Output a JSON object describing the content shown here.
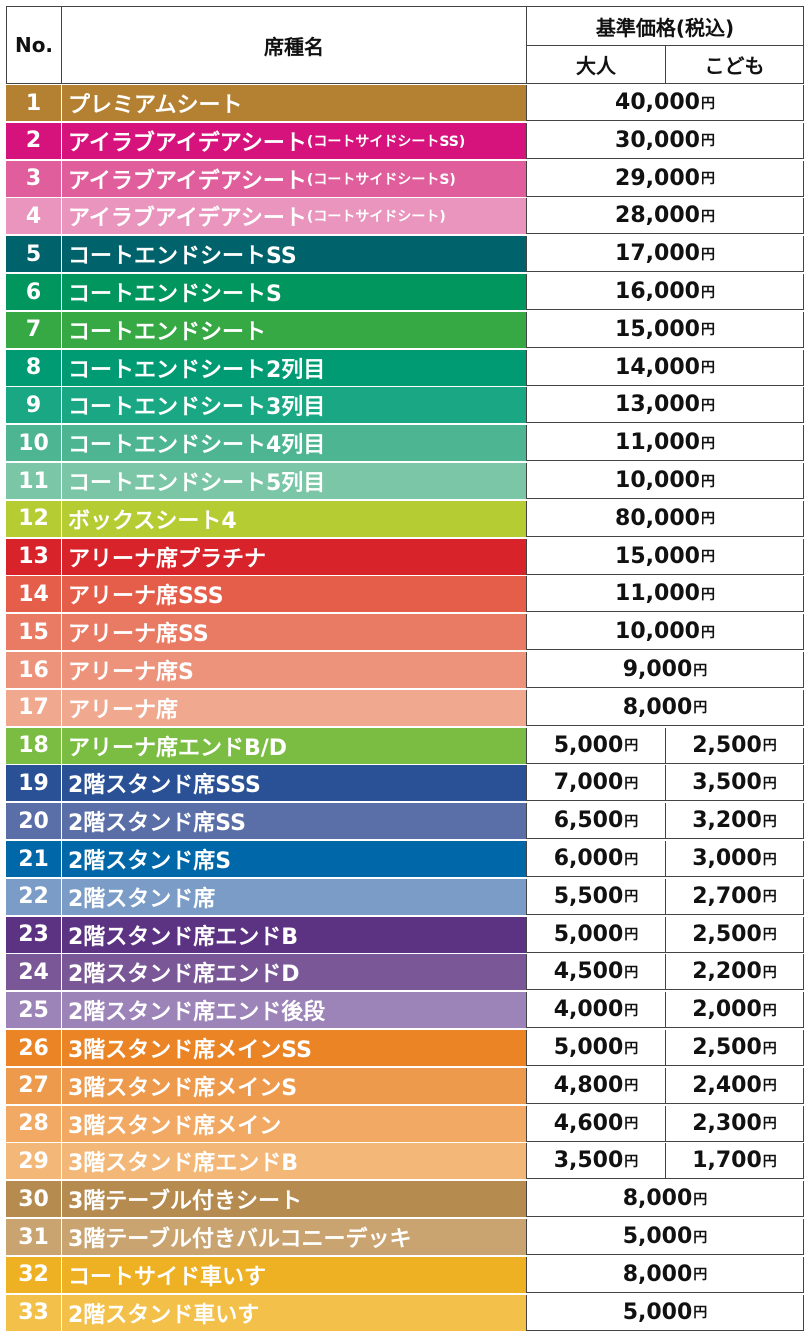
{
  "header": {
    "no": "No.",
    "seat_type": "席種名",
    "base_price": "基準価格(税込)",
    "adult": "大人",
    "child": "こども"
  },
  "yen": "円",
  "rows": [
    {
      "no": "1",
      "name": "プレミアムシート",
      "sub": "",
      "adult": "40,000",
      "child": "",
      "color": "#b48032"
    },
    {
      "no": "2",
      "name": "アイラブアイデアシート",
      "sub": "(コートサイドシートSS)",
      "adult": "30,000",
      "child": "",
      "color": "#d6137d"
    },
    {
      "no": "3",
      "name": "アイラブアイデアシート",
      "sub": "(コートサイドシートS)",
      "adult": "29,000",
      "child": "",
      "color": "#e05e9c"
    },
    {
      "no": "4",
      "name": "アイラブアイデアシート",
      "sub": "(コートサイドシート)",
      "adult": "28,000",
      "child": "",
      "color": "#e995bd"
    },
    {
      "no": "5",
      "name": "コートエンドシートSS",
      "sub": "",
      "adult": "17,000",
      "child": "",
      "color": "#00626a"
    },
    {
      "no": "6",
      "name": "コートエンドシートS",
      "sub": "",
      "adult": "16,000",
      "child": "",
      "color": "#00965e"
    },
    {
      "no": "7",
      "name": "コートエンドシート",
      "sub": "",
      "adult": "15,000",
      "child": "",
      "color": "#36a844"
    },
    {
      "no": "8",
      "name": "コートエンドシート2列目",
      "sub": "",
      "adult": "14,000",
      "child": "",
      "color": "#009b73"
    },
    {
      "no": "9",
      "name": "コートエンドシート3列目",
      "sub": "",
      "adult": "13,000",
      "child": "",
      "color": "#1aa884"
    },
    {
      "no": "10",
      "name": "コートエンドシート4列目",
      "sub": "",
      "adult": "11,000",
      "child": "",
      "color": "#4db592"
    },
    {
      "no": "11",
      "name": "コートエンドシート5列目",
      "sub": "",
      "adult": "10,000",
      "child": "",
      "color": "#7bc6a6"
    },
    {
      "no": "12",
      "name": "ボックスシート4",
      "sub": "",
      "adult": "80,000",
      "child": "",
      "color": "#b5cc32"
    },
    {
      "no": "13",
      "name": "アリーナ席プラチナ",
      "sub": "",
      "adult": "15,000",
      "child": "",
      "color": "#d8232a"
    },
    {
      "no": "14",
      "name": "アリーナ席SSS",
      "sub": "",
      "adult": "11,000",
      "child": "",
      "color": "#e55e4a"
    },
    {
      "no": "15",
      "name": "アリーナ席SS",
      "sub": "",
      "adult": "10,000",
      "child": "",
      "color": "#e97a63"
    },
    {
      "no": "16",
      "name": "アリーナ席S",
      "sub": "",
      "adult": "9,000",
      "child": "",
      "color": "#ed937b"
    },
    {
      "no": "17",
      "name": "アリーナ席",
      "sub": "",
      "adult": "8,000",
      "child": "",
      "color": "#f0a98f"
    },
    {
      "no": "18",
      "name": "アリーナ席エンドB/D",
      "sub": "",
      "adult": "5,000",
      "child": "2,500",
      "color": "#7bbd42"
    },
    {
      "no": "19",
      "name": "2階スタンド席SSS",
      "sub": "",
      "adult": "7,000",
      "child": "3,500",
      "color": "#2a5096"
    },
    {
      "no": "20",
      "name": "2階スタンド席SS",
      "sub": "",
      "adult": "6,500",
      "child": "3,200",
      "color": "#5a6fa8"
    },
    {
      "no": "21",
      "name": "2階スタンド席S",
      "sub": "",
      "adult": "6,000",
      "child": "3,000",
      "color": "#0068a8"
    },
    {
      "no": "22",
      "name": "2階スタンド席",
      "sub": "",
      "adult": "5,500",
      "child": "2,700",
      "color": "#7a9cc6"
    },
    {
      "no": "23",
      "name": "2階スタンド席エンドB",
      "sub": "",
      "adult": "5,000",
      "child": "2,500",
      "color": "#5c3383"
    },
    {
      "no": "24",
      "name": "2階スタンド席エンドD",
      "sub": "",
      "adult": "4,500",
      "child": "2,200",
      "color": "#7a5897"
    },
    {
      "no": "25",
      "name": "2階スタンド席エンド後段",
      "sub": "",
      "adult": "4,000",
      "child": "2,000",
      "color": "#9d84b8"
    },
    {
      "no": "26",
      "name": "3階スタンド席メインSS",
      "sub": "",
      "adult": "5,000",
      "child": "2,500",
      "color": "#ea8425"
    },
    {
      "no": "27",
      "name": "3階スタンド席メインS",
      "sub": "",
      "adult": "4,800",
      "child": "2,400",
      "color": "#ee9a4c"
    },
    {
      "no": "28",
      "name": "3階スタンド席メイン",
      "sub": "",
      "adult": "4,600",
      "child": "2,300",
      "color": "#f1a963"
    },
    {
      "no": "29",
      "name": "3階スタンド席エンドB",
      "sub": "",
      "adult": "3,500",
      "child": "1,700",
      "color": "#f3b778"
    },
    {
      "no": "30",
      "name": "3階テーブル付きシート",
      "sub": "",
      "adult": "8,000",
      "child": "",
      "color": "#b58b50"
    },
    {
      "no": "31",
      "name": "3階テーブル付きバルコニーデッキ",
      "sub": "",
      "adult": "5,000",
      "child": "",
      "color": "#c9a470"
    },
    {
      "no": "32",
      "name": "コートサイド車いす",
      "sub": "",
      "adult": "8,000",
      "child": "",
      "color": "#eeb124"
    },
    {
      "no": "33",
      "name": "2階スタンド車いす",
      "sub": "",
      "adult": "5,000",
      "child": "",
      "color": "#f3c04a"
    }
  ]
}
